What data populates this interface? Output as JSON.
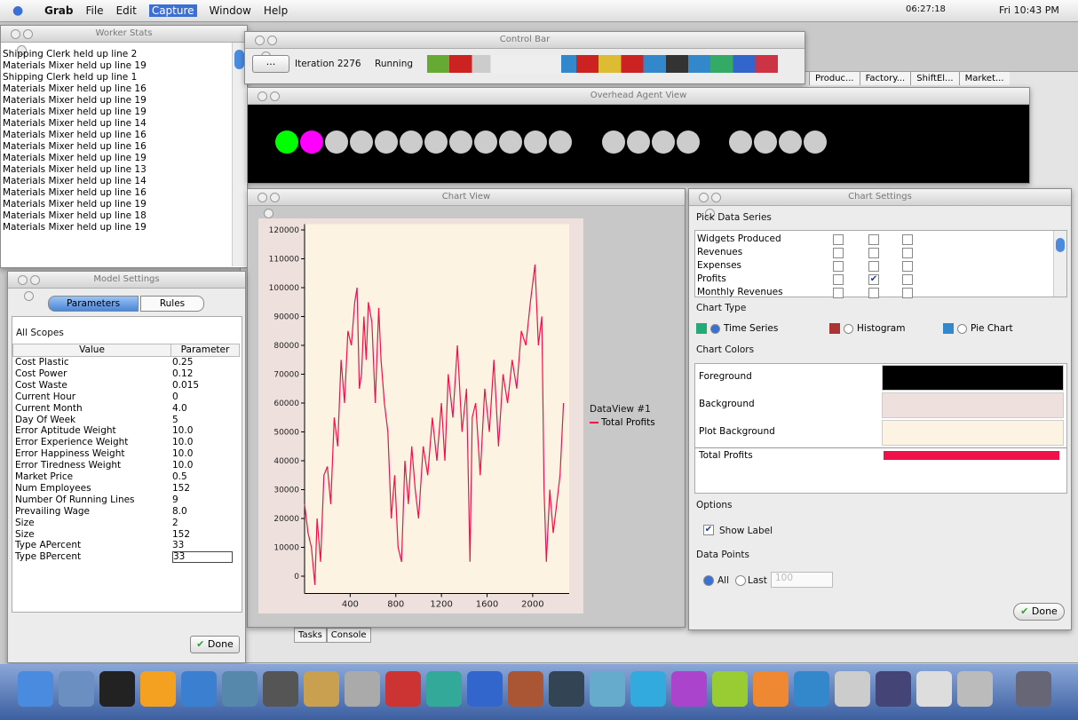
{
  "menubar": {
    "app": "Grab",
    "menus": [
      "File",
      "Edit",
      "Capture",
      "Window",
      "Help"
    ],
    "clock": "06:27:18",
    "datetime": "Fri 10:43 PM"
  },
  "worker_stats": {
    "title": "Worker Stats",
    "lines": [
      "Shipping Clerk held up line 2",
      "Materials Mixer held up line 19",
      "Shipping Clerk held up line 1",
      "Materials Mixer held up line 16",
      "Materials Mixer held up line 19",
      "Materials Mixer held up line 19",
      "Materials Mixer held up line 14",
      "Materials Mixer held up line 16",
      "Materials Mixer held up line 16",
      "Materials Mixer held up line 19",
      "Materials Mixer held up line 13",
      "Materials Mixer held up line 14",
      "Materials Mixer held up line 16",
      "Materials Mixer held up line 19",
      "Materials Mixer held up line 18",
      "Materials Mixer held up line 19"
    ]
  },
  "control_bar": {
    "title": "Control Bar",
    "menu": "...",
    "iteration": "Iteration 2276",
    "status": "Running"
  },
  "tabs": [
    "Produc...",
    "Factory...",
    "ShiftEl...",
    "Market..."
  ],
  "overhead_view": {
    "title": "Overhead Agent View"
  },
  "chart_view": {
    "title": "Chart View"
  },
  "chart_data": {
    "type": "line",
    "legend_title": "DataView #1",
    "x": [
      0,
      30,
      60,
      90,
      110,
      140,
      170,
      200,
      230,
      260,
      290,
      320,
      350,
      380,
      410,
      440,
      460,
      480,
      500,
      520,
      540,
      560,
      590,
      620,
      650,
      670,
      700,
      730,
      760,
      790,
      820,
      850,
      880,
      910,
      940,
      970,
      1000,
      1040,
      1080,
      1120,
      1160,
      1200,
      1230,
      1260,
      1300,
      1340,
      1380,
      1420,
      1450,
      1470,
      1500,
      1540,
      1580,
      1620,
      1660,
      1700,
      1740,
      1780,
      1820,
      1860,
      1900,
      1940,
      1980,
      2020,
      2050,
      2080,
      2100,
      2120,
      2150,
      2180,
      2210,
      2240,
      2270
    ],
    "series": [
      {
        "name": "Total Profits",
        "color": "#f0104a",
        "values": [
          25000,
          15000,
          10000,
          -3000,
          20000,
          5000,
          35000,
          38000,
          25000,
          55000,
          45000,
          75000,
          60000,
          85000,
          80000,
          95000,
          100000,
          65000,
          70000,
          90000,
          75000,
          95000,
          88000,
          60000,
          93000,
          75000,
          60000,
          50000,
          20000,
          35000,
          10000,
          5000,
          40000,
          25000,
          45000,
          30000,
          20000,
          45000,
          35000,
          55000,
          40000,
          60000,
          40000,
          70000,
          55000,
          80000,
          50000,
          65000,
          5000,
          55000,
          60000,
          35000,
          65000,
          50000,
          75000,
          45000,
          70000,
          60000,
          75000,
          65000,
          85000,
          80000,
          95000,
          108000,
          80000,
          90000,
          30000,
          5000,
          30000,
          15000,
          25000,
          35000,
          60000
        ]
      }
    ],
    "xlim": [
      0,
      2320
    ],
    "ylim": [
      -6000,
      122000
    ],
    "xticks": [
      400,
      800,
      1200,
      1600,
      2000
    ],
    "yticks": [
      0,
      10000,
      20000,
      30000,
      40000,
      50000,
      60000,
      70000,
      80000,
      90000,
      100000,
      110000,
      120000
    ],
    "background": "#eee0dc",
    "plot_background": "#fdf3e3"
  },
  "chart_settings": {
    "title": "Chart Settings",
    "pick_label": "Pick Data Series",
    "series": [
      {
        "name": "Widgets Produced",
        "checked": false
      },
      {
        "name": "Revenues",
        "checked": false
      },
      {
        "name": "Expenses",
        "checked": false
      },
      {
        "name": "Profits",
        "checked": true
      },
      {
        "name": "Monthly Revenues",
        "checked": false
      }
    ],
    "chart_type_label": "Chart Type",
    "chart_types": [
      "Time Series",
      "Histogram",
      "Pie Chart"
    ],
    "colors_label": "Chart Colors",
    "colors": [
      {
        "label": "Foreground",
        "color": "#000000"
      },
      {
        "label": "Background",
        "color": "#eee0dc"
      },
      {
        "label": "Plot Background",
        "color": "#fdf3e3"
      }
    ],
    "series_color": {
      "label": "Total Profits",
      "color": "#f0104a"
    },
    "options_label": "Options",
    "show_label": "Show Label",
    "data_points_label": "Data Points",
    "all": "All",
    "last": "Last",
    "last_count": "100",
    "done": "Done"
  },
  "model_settings": {
    "title": "Model Settings",
    "tabs": [
      "Parameters",
      "Rules"
    ],
    "scope": "All Scopes",
    "header": [
      "Value",
      "Parameter"
    ],
    "rows": [
      [
        "Cost Plastic",
        "0.25"
      ],
      [
        "Cost Power",
        "0.12"
      ],
      [
        "Cost Waste",
        "0.015"
      ],
      [
        "Current Hour",
        "0"
      ],
      [
        "Current Month",
        "4.0"
      ],
      [
        "Day Of Week",
        "5"
      ],
      [
        "Error Aptitude Weight",
        "10.0"
      ],
      [
        "Error Experience Weight",
        "10.0"
      ],
      [
        "Error Happiness Weight",
        "10.0"
      ],
      [
        "Error Tiredness Weight",
        "10.0"
      ],
      [
        "Market Price",
        "0.5"
      ],
      [
        "Num Employees",
        "152"
      ],
      [
        "Number Of Running Lines",
        "9"
      ],
      [
        "Prevailing Wage",
        "8.0"
      ],
      [
        "Size",
        "2"
      ],
      [
        "Size",
        "152"
      ],
      [
        "Type APercent",
        "33"
      ],
      [
        "Type BPercent",
        "33"
      ]
    ],
    "done": "Done"
  },
  "bottom_tabs": [
    "Tasks",
    "Console"
  ]
}
